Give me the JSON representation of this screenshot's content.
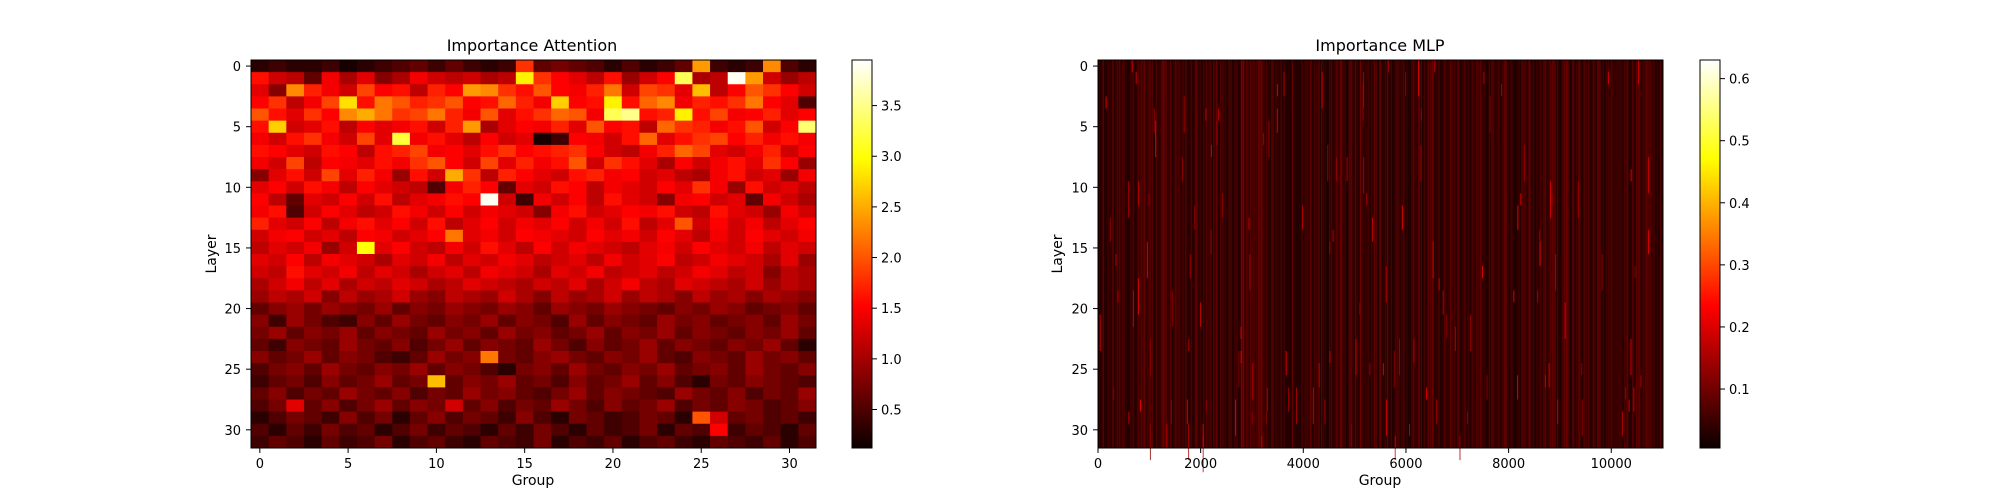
{
  "chart_data": [
    {
      "type": "heatmap",
      "title": "Importance Attention",
      "xlabel": "Group",
      "ylabel": "Layer",
      "rows": 32,
      "cols": 32,
      "x_ticks": [
        "0",
        "5",
        "10",
        "15",
        "20",
        "25",
        "30"
      ],
      "x_tick_values": [
        0,
        5,
        10,
        15,
        20,
        25,
        30
      ],
      "y_ticks": [
        "0",
        "5",
        "10",
        "15",
        "20",
        "25",
        "30"
      ],
      "y_tick_values": [
        0,
        5,
        10,
        15,
        20,
        25,
        30
      ],
      "colormap": "hot",
      "colorbar": {
        "min": 0.12,
        "max": 3.95,
        "ticks": [
          "0.5",
          "1.0",
          "1.5",
          "2.0",
          "2.5",
          "3.0",
          "3.5"
        ],
        "tick_values": [
          0.5,
          1.0,
          1.5,
          2.0,
          2.5,
          3.0,
          3.5
        ]
      },
      "values": [
        [
          0.3,
          0.4,
          0.3,
          0.3,
          0.4,
          0.2,
          0.3,
          0.4,
          0.5,
          0.6,
          0.4,
          0.6,
          0.4,
          0.3,
          0.4,
          1.8,
          0.6,
          0.7,
          0.6,
          0.5,
          0.3,
          0.5,
          0.3,
          0.4,
          0.6,
          2.4,
          0.4,
          0.3,
          0.4,
          2.3,
          0.5,
          0.3
        ],
        [
          1.6,
          1.2,
          1.1,
          0.6,
          1.4,
          1.0,
          1.3,
          0.8,
          1.0,
          1.4,
          1.2,
          1.1,
          1.2,
          1.0,
          1.1,
          2.9,
          1.8,
          1.5,
          1.3,
          1.1,
          1.6,
          0.9,
          1.2,
          1.5,
          3.3,
          1.0,
          1.1,
          3.9,
          2.4,
          1.2,
          0.9,
          1.1
        ],
        [
          1.3,
          0.8,
          2.3,
          1.7,
          1.4,
          1.2,
          1.9,
          1.5,
          1.6,
          1.1,
          1.7,
          1.5,
          2.4,
          2.3,
          1.8,
          1.6,
          2.0,
          1.5,
          1.4,
          1.7,
          2.2,
          1.2,
          1.9,
          1.8,
          1.3,
          2.6,
          1.1,
          1.5,
          2.0,
          1.8,
          1.5,
          1.2
        ],
        [
          1.5,
          1.8,
          1.1,
          1.4,
          1.9,
          2.8,
          1.6,
          2.2,
          2.0,
          1.7,
          1.8,
          2.0,
          1.5,
          1.6,
          2.1,
          1.7,
          1.4,
          2.7,
          1.5,
          1.6,
          2.9,
          1.6,
          2.1,
          2.3,
          1.4,
          1.7,
          1.6,
          1.8,
          2.2,
          1.5,
          1.3,
          0.5
        ],
        [
          2.0,
          1.6,
          1.3,
          1.8,
          1.5,
          2.3,
          2.5,
          2.2,
          1.8,
          1.9,
          2.2,
          1.7,
          1.4,
          2.0,
          1.3,
          1.6,
          1.8,
          2.1,
          2.0,
          1.4,
          3.3,
          3.5,
          1.6,
          1.7,
          2.9,
          1.6,
          1.9,
          1.4,
          1.5,
          1.7,
          1.3,
          1.5
        ],
        [
          1.6,
          2.7,
          1.2,
          1.3,
          1.6,
          1.1,
          1.5,
          1.3,
          1.4,
          1.6,
          1.2,
          1.7,
          2.4,
          1.0,
          1.3,
          1.5,
          1.4,
          1.7,
          1.3,
          2.0,
          1.5,
          1.6,
          1.1,
          2.1,
          1.8,
          1.7,
          1.4,
          1.6,
          2.0,
          1.2,
          1.5,
          3.4
        ],
        [
          1.4,
          1.2,
          1.6,
          1.8,
          1.4,
          1.2,
          1.9,
          1.3,
          3.2,
          1.4,
          1.6,
          1.3,
          1.1,
          1.5,
          1.2,
          1.3,
          0.2,
          0.4,
          1.5,
          1.4,
          1.2,
          1.6,
          2.1,
          1.3,
          1.6,
          1.8,
          1.9,
          1.5,
          1.7,
          1.4,
          1.6,
          1.4
        ],
        [
          1.6,
          1.5,
          1.3,
          1.2,
          1.6,
          1.5,
          1.1,
          1.6,
          1.7,
          1.9,
          1.4,
          1.5,
          1.3,
          1.6,
          1.8,
          1.5,
          1.6,
          1.7,
          1.8,
          1.5,
          1.2,
          1.1,
          1.4,
          1.7,
          2.1,
          1.9,
          1.3,
          1.2,
          1.4,
          1.7,
          1.2,
          1.5
        ],
        [
          1.4,
          1.2,
          1.9,
          1.1,
          1.5,
          1.4,
          1.3,
          1.6,
          1.4,
          1.8,
          2.0,
          1.5,
          1.2,
          1.9,
          1.3,
          1.7,
          1.4,
          1.6,
          2.0,
          1.2,
          1.8,
          1.6,
          1.3,
          1.0,
          1.5,
          1.2,
          1.4,
          1.6,
          1.3,
          1.8,
          1.5,
          0.9
        ],
        [
          0.8,
          1.3,
          1.6,
          1.2,
          1.9,
          1.3,
          1.7,
          1.4,
          0.9,
          1.6,
          1.2,
          2.5,
          1.8,
          1.1,
          1.7,
          1.5,
          1.3,
          1.2,
          1.6,
          1.7,
          1.4,
          1.5,
          1.2,
          1.3,
          1.1,
          1.0,
          1.4,
          1.6,
          1.2,
          1.3,
          0.9,
          1.4
        ],
        [
          1.3,
          1.5,
          1.2,
          1.6,
          1.4,
          1.1,
          1.5,
          1.3,
          1.2,
          1.1,
          0.5,
          1.4,
          1.7,
          1.5,
          0.6,
          1.3,
          1.2,
          1.6,
          1.5,
          1.1,
          1.4,
          1.3,
          1.2,
          1.5,
          1.3,
          1.8,
          1.4,
          0.9,
          1.6,
          1.2,
          1.3,
          1.1
        ],
        [
          1.5,
          1.1,
          0.6,
          1.3,
          1.2,
          1.5,
          1.2,
          1.6,
          1.1,
          1.3,
          1.4,
          1.6,
          1.5,
          3.9,
          1.2,
          0.4,
          1.4,
          1.2,
          1.5,
          1.1,
          1.6,
          1.3,
          1.2,
          0.8,
          1.4,
          1.5,
          1.2,
          1.3,
          0.6,
          1.4,
          1.2,
          1.0
        ],
        [
          1.4,
          1.6,
          0.5,
          1.2,
          1.5,
          1.3,
          1.1,
          1.2,
          1.6,
          1.4,
          1.2,
          1.5,
          1.2,
          1.4,
          1.3,
          1.2,
          0.8,
          1.4,
          1.6,
          1.2,
          1.3,
          1.5,
          1.4,
          1.6,
          1.2,
          1.1,
          1.6,
          1.3,
          1.2,
          0.9,
          1.4,
          1.2
        ],
        [
          1.7,
          1.3,
          1.2,
          1.5,
          1.1,
          1.4,
          1.6,
          1.3,
          1.5,
          1.2,
          1.6,
          1.1,
          1.3,
          1.5,
          1.2,
          1.4,
          1.3,
          1.5,
          1.2,
          1.4,
          1.2,
          1.6,
          1.1,
          1.3,
          2.0,
          1.2,
          1.5,
          1.2,
          1.4,
          1.1,
          1.3,
          1.5
        ],
        [
          1.2,
          1.4,
          1.5,
          1.2,
          1.3,
          1.1,
          1.5,
          1.4,
          1.2,
          1.3,
          1.5,
          2.2,
          1.3,
          1.4,
          1.2,
          1.5,
          1.4,
          1.3,
          1.2,
          1.5,
          1.3,
          1.4,
          1.2,
          1.5,
          1.3,
          1.1,
          1.4,
          1.2,
          1.5,
          1.3,
          1.2,
          1.4
        ],
        [
          1.1,
          1.3,
          1.2,
          1.4,
          0.9,
          1.2,
          3.0,
          1.3,
          1.5,
          1.2,
          1.1,
          1.4,
          1.2,
          1.6,
          1.3,
          1.1,
          1.5,
          1.2,
          1.4,
          1.3,
          1.2,
          1.1,
          1.3,
          1.4,
          1.2,
          1.5,
          1.3,
          1.2,
          1.4,
          1.1,
          1.3,
          1.2
        ],
        [
          1.3,
          1.2,
          1.5,
          1.1,
          1.4,
          1.3,
          1.2,
          1.0,
          1.3,
          1.2,
          1.4,
          1.1,
          1.3,
          1.2,
          1.4,
          1.3,
          1.1,
          1.2,
          1.3,
          1.1,
          1.4,
          1.2,
          1.3,
          1.5,
          1.1,
          1.2,
          1.4,
          1.3,
          1.2,
          1.0,
          1.3,
          0.9
        ],
        [
          1.2,
          1.1,
          1.6,
          1.3,
          1.2,
          1.4,
          1.1,
          1.3,
          1.2,
          1.0,
          1.2,
          1.3,
          1.1,
          1.4,
          1.3,
          1.2,
          1.0,
          1.3,
          1.2,
          1.4,
          1.1,
          1.2,
          1.3,
          1.1,
          1.2,
          1.4,
          1.3,
          1.1,
          1.2,
          0.8,
          1.1,
          1.0
        ],
        [
          1.0,
          1.2,
          1.4,
          1.1,
          1.3,
          1.0,
          1.2,
          1.1,
          1.3,
          1.2,
          1.0,
          1.1,
          1.3,
          1.2,
          1.1,
          1.0,
          1.2,
          1.1,
          1.3,
          1.0,
          1.2,
          1.4,
          1.1,
          1.0,
          1.3,
          1.2,
          1.1,
          1.0,
          1.2,
          0.9,
          1.1,
          1.0
        ],
        [
          0.9,
          1.1,
          1.0,
          1.2,
          0.8,
          1.1,
          0.9,
          1.0,
          1.2,
          0.9,
          0.8,
          1.1,
          1.0,
          0.9,
          1.2,
          1.0,
          0.8,
          1.1,
          0.9,
          1.0,
          1.2,
          0.9,
          1.1,
          1.0,
          0.8,
          1.1,
          0.9,
          1.0,
          0.8,
          1.0,
          0.9,
          0.8
        ],
        [
          0.6,
          0.8,
          0.9,
          0.7,
          0.9,
          0.8,
          0.7,
          0.9,
          0.6,
          0.8,
          0.7,
          0.9,
          0.8,
          0.7,
          0.9,
          0.8,
          0.6,
          0.9,
          0.8,
          0.7,
          0.9,
          0.8,
          0.7,
          0.6,
          0.8,
          0.7,
          0.9,
          0.8,
          0.6,
          0.7,
          0.8,
          0.6
        ],
        [
          0.8,
          0.4,
          0.9,
          0.7,
          0.5,
          0.4,
          0.8,
          0.6,
          0.9,
          0.7,
          0.6,
          0.8,
          0.7,
          0.9,
          0.6,
          0.8,
          0.7,
          0.5,
          0.9,
          0.6,
          0.8,
          0.7,
          0.6,
          0.9,
          0.7,
          0.8,
          0.6,
          0.7,
          0.8,
          0.6,
          0.9,
          0.7
        ],
        [
          0.7,
          0.9,
          0.6,
          0.8,
          0.7,
          0.9,
          0.6,
          0.8,
          0.7,
          0.6,
          0.9,
          0.7,
          0.8,
          0.6,
          0.9,
          0.7,
          0.8,
          0.6,
          0.7,
          0.9,
          0.6,
          0.8,
          0.7,
          0.9,
          0.6,
          0.8,
          0.7,
          0.6,
          0.8,
          0.7,
          0.9,
          0.6
        ],
        [
          0.6,
          0.4,
          0.8,
          0.7,
          0.6,
          0.9,
          0.7,
          0.6,
          0.8,
          0.5,
          0.7,
          0.9,
          0.6,
          0.8,
          0.7,
          0.6,
          0.9,
          0.7,
          0.5,
          0.8,
          0.6,
          0.7,
          0.9,
          0.6,
          0.8,
          0.7,
          0.6,
          0.8,
          0.7,
          0.9,
          0.6,
          0.3
        ],
        [
          0.8,
          0.6,
          0.7,
          0.9,
          0.6,
          0.8,
          0.7,
          0.5,
          0.4,
          0.6,
          0.9,
          0.7,
          0.8,
          2.2,
          0.7,
          0.6,
          0.8,
          0.9,
          0.7,
          0.6,
          0.8,
          0.7,
          0.9,
          0.6,
          0.5,
          0.8,
          0.7,
          0.6,
          0.9,
          0.7,
          0.8,
          0.6
        ],
        [
          0.5,
          0.7,
          0.8,
          0.6,
          0.9,
          0.7,
          0.6,
          0.8,
          0.7,
          0.9,
          0.6,
          0.8,
          0.7,
          0.5,
          0.3,
          0.7,
          0.8,
          0.6,
          0.9,
          0.7,
          0.6,
          0.8,
          0.7,
          0.9,
          0.6,
          0.7,
          0.8,
          0.6,
          0.9,
          0.7,
          0.6,
          0.8
        ],
        [
          0.4,
          0.6,
          0.7,
          0.5,
          0.8,
          0.6,
          0.7,
          0.9,
          0.6,
          0.7,
          2.6,
          0.6,
          0.8,
          0.7,
          0.9,
          0.6,
          0.7,
          0.5,
          0.8,
          0.6,
          0.7,
          0.9,
          0.6,
          0.8,
          0.5,
          0.3,
          0.7,
          0.6,
          0.8,
          0.7,
          0.6,
          0.5
        ],
        [
          0.6,
          0.8,
          0.5,
          0.7,
          0.6,
          0.9,
          0.7,
          0.6,
          0.8,
          0.5,
          0.7,
          0.6,
          0.9,
          0.7,
          0.8,
          0.6,
          0.5,
          0.7,
          0.9,
          0.6,
          0.8,
          0.7,
          0.6,
          0.5,
          0.9,
          0.7,
          0.6,
          0.8,
          0.5,
          0.7,
          0.6,
          0.9
        ],
        [
          0.5,
          0.7,
          1.3,
          0.6,
          0.8,
          0.5,
          0.7,
          0.9,
          0.6,
          0.8,
          0.7,
          1.2,
          0.6,
          0.8,
          0.5,
          0.7,
          0.6,
          0.9,
          0.7,
          0.5,
          0.8,
          0.6,
          0.7,
          0.9,
          0.5,
          0.7,
          0.6,
          0.8,
          0.7,
          0.5,
          0.6,
          0.8
        ],
        [
          0.3,
          0.5,
          0.7,
          0.6,
          0.4,
          0.8,
          0.5,
          0.7,
          0.3,
          0.6,
          0.8,
          0.5,
          0.7,
          0.6,
          0.4,
          0.8,
          0.5,
          0.3,
          0.7,
          0.6,
          0.4,
          0.5,
          0.7,
          0.6,
          0.3,
          2.0,
          1.2,
          0.6,
          0.7,
          0.5,
          0.6,
          0.4
        ],
        [
          0.5,
          0.3,
          0.6,
          0.4,
          0.7,
          0.5,
          0.6,
          0.3,
          0.5,
          0.7,
          0.4,
          0.6,
          0.5,
          0.3,
          0.6,
          0.4,
          0.7,
          0.5,
          0.3,
          0.6,
          0.4,
          0.5,
          0.7,
          0.3,
          0.6,
          0.5,
          1.5,
          0.4,
          0.6,
          0.5,
          0.3,
          0.6
        ],
        [
          0.4,
          0.6,
          0.5,
          0.3,
          0.6,
          0.4,
          0.5,
          0.7,
          0.3,
          0.5,
          0.6,
          0.4,
          0.3,
          0.6,
          0.5,
          0.4,
          0.7,
          0.3,
          0.5,
          0.4,
          0.6,
          0.3,
          0.5,
          0.6,
          0.4,
          0.3,
          0.6,
          0.5,
          0.4,
          0.6,
          0.3,
          0.5
        ]
      ]
    },
    {
      "type": "heatmap",
      "title": "Importance MLP",
      "xlabel": "Group",
      "ylabel": "Layer",
      "rows": 32,
      "cols": 11008,
      "xlim": [
        0,
        11008
      ],
      "x_ticks": [
        "0",
        "2000",
        "4000",
        "6000",
        "8000",
        "10000"
      ],
      "x_tick_values": [
        0,
        2000,
        4000,
        6000,
        8000,
        10000
      ],
      "y_ticks": [
        "0",
        "5",
        "10",
        "15",
        "20",
        "25",
        "30"
      ],
      "y_tick_values": [
        0,
        5,
        10,
        15,
        20,
        25,
        30
      ],
      "colormap": "hot",
      "colorbar": {
        "min": 0.005,
        "max": 0.63,
        "ticks": [
          "0.1",
          "0.2",
          "0.3",
          "0.4",
          "0.5",
          "0.6"
        ],
        "tick_values": [
          0.1,
          0.2,
          0.3,
          0.4,
          0.5,
          0.6
        ]
      },
      "typical_value": 0.02
    }
  ]
}
